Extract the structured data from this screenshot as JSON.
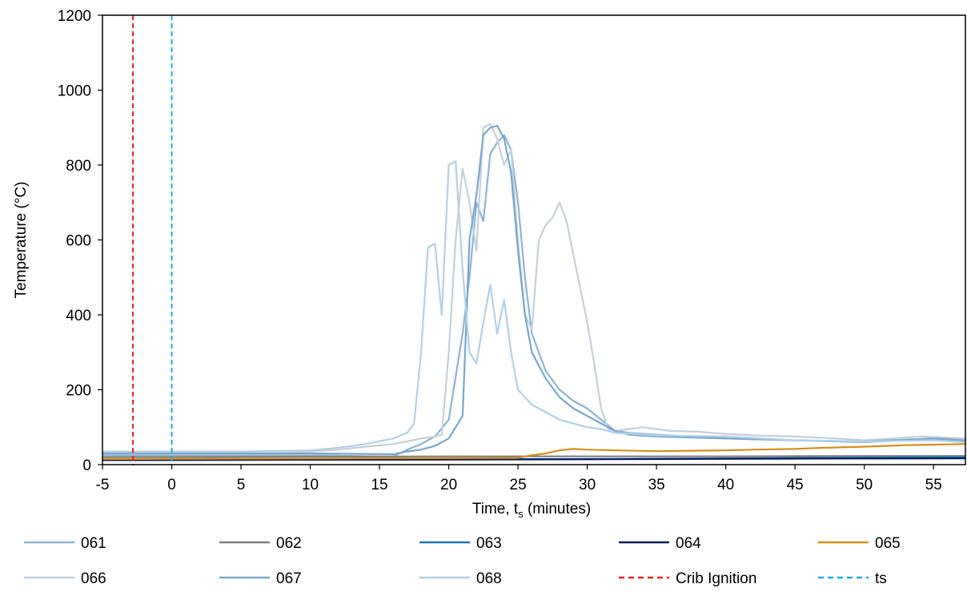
{
  "chart_data": {
    "type": "line",
    "xlabel_main": "Time, t",
    "xlabel_sub": "s",
    "xlabel_tail": " (minutes)",
    "ylabel": "Temperature (°C)",
    "xlim": [
      -5,
      57.3
    ],
    "ylim": [
      0,
      1200
    ],
    "xticks": [
      -5,
      0,
      5,
      10,
      15,
      20,
      25,
      30,
      35,
      40,
      45,
      50,
      55
    ],
    "yticks": [
      0,
      200,
      400,
      600,
      800,
      1000,
      1200
    ],
    "grid": false,
    "legend_position": "bottom",
    "vlines": [
      {
        "name": "Crib Ignition",
        "x": -2.8,
        "color": "#e8231f",
        "dash": true
      },
      {
        "name": "ts",
        "x": 0,
        "color": "#22a9e1",
        "dash": true
      }
    ],
    "series": [
      {
        "name": "061",
        "color": "#8fb4d3",
        "points": [
          [
            -5,
            25
          ],
          [
            10,
            25
          ],
          [
            15,
            22
          ],
          [
            16,
            22
          ],
          [
            17,
            40
          ],
          [
            18,
            55
          ],
          [
            19,
            75
          ],
          [
            20,
            120
          ],
          [
            21,
            350
          ],
          [
            21.5,
            500
          ],
          [
            22,
            700
          ],
          [
            22.5,
            650
          ],
          [
            23,
            830
          ],
          [
            23.5,
            860
          ],
          [
            24,
            880
          ],
          [
            24.5,
            840
          ],
          [
            25,
            700
          ],
          [
            25.5,
            500
          ],
          [
            26,
            350
          ],
          [
            27,
            250
          ],
          [
            28,
            200
          ],
          [
            29,
            170
          ],
          [
            30,
            150
          ],
          [
            31,
            120
          ],
          [
            32,
            90
          ],
          [
            33,
            85
          ],
          [
            35,
            80
          ],
          [
            40,
            70
          ],
          [
            45,
            65
          ],
          [
            50,
            60
          ],
          [
            55,
            70
          ],
          [
            57.3,
            62
          ]
        ]
      },
      {
        "name": "062",
        "color": "#808080",
        "points": [
          [
            -5,
            20
          ],
          [
            20,
            22
          ],
          [
            30,
            22
          ],
          [
            40,
            22
          ],
          [
            50,
            23
          ],
          [
            57.3,
            23
          ]
        ]
      },
      {
        "name": "063",
        "color": "#1f77b4",
        "points": [
          [
            -5,
            12
          ],
          [
            20,
            14
          ],
          [
            30,
            15
          ],
          [
            40,
            17
          ],
          [
            50,
            19
          ],
          [
            57.3,
            20
          ]
        ]
      },
      {
        "name": "064",
        "color": "#0a1a5c",
        "points": [
          [
            -5,
            12
          ],
          [
            25,
            14
          ],
          [
            35,
            15
          ],
          [
            45,
            16
          ],
          [
            57.3,
            17
          ]
        ]
      },
      {
        "name": "065",
        "color": "#d4901f",
        "points": [
          [
            -5,
            15
          ],
          [
            25,
            18
          ],
          [
            26,
            25
          ],
          [
            27,
            30
          ],
          [
            28,
            38
          ],
          [
            29,
            42
          ],
          [
            30,
            40
          ],
          [
            32,
            38
          ],
          [
            35,
            36
          ],
          [
            40,
            38
          ],
          [
            42,
            40
          ],
          [
            45,
            42
          ],
          [
            47,
            45
          ],
          [
            50,
            48
          ],
          [
            53,
            52
          ],
          [
            57.3,
            55
          ]
        ]
      },
      {
        "name": "066",
        "color": "#c4d0db",
        "points": [
          [
            -5,
            35
          ],
          [
            10,
            35
          ],
          [
            12,
            40
          ],
          [
            14,
            48
          ],
          [
            16,
            55
          ],
          [
            17,
            62
          ],
          [
            18,
            70
          ],
          [
            19,
            75
          ],
          [
            19.5,
            80
          ],
          [
            20,
            300
          ],
          [
            20.5,
            600
          ],
          [
            21,
            790
          ],
          [
            21.5,
            700
          ],
          [
            22,
            570
          ],
          [
            22.5,
            900
          ],
          [
            23,
            910
          ],
          [
            23.5,
            870
          ],
          [
            24,
            800
          ],
          [
            24.5,
            840
          ],
          [
            25,
            600
          ],
          [
            25.5,
            400
          ],
          [
            26,
            360
          ],
          [
            26.5,
            600
          ],
          [
            27,
            640
          ],
          [
            27.5,
            660
          ],
          [
            28,
            700
          ],
          [
            28.5,
            650
          ],
          [
            29,
            560
          ],
          [
            29.5,
            470
          ],
          [
            30,
            380
          ],
          [
            30.5,
            270
          ],
          [
            31,
            150
          ],
          [
            31.5,
            95
          ],
          [
            32,
            90
          ],
          [
            34,
            100
          ],
          [
            36,
            90
          ],
          [
            38,
            88
          ],
          [
            40,
            82
          ],
          [
            42,
            78
          ],
          [
            45,
            75
          ],
          [
            48,
            70
          ],
          [
            50,
            65
          ],
          [
            52,
            70
          ],
          [
            54,
            75
          ],
          [
            57.3,
            70
          ]
        ]
      },
      {
        "name": "067",
        "color": "#7ba7cc",
        "points": [
          [
            -5,
            30
          ],
          [
            10,
            30
          ],
          [
            15,
            28
          ],
          [
            16,
            28
          ],
          [
            17,
            35
          ],
          [
            18,
            40
          ],
          [
            19,
            50
          ],
          [
            20,
            70
          ],
          [
            20.5,
            100
          ],
          [
            21,
            130
          ],
          [
            21.5,
            600
          ],
          [
            22,
            720
          ],
          [
            22.5,
            880
          ],
          [
            23,
            900
          ],
          [
            23.5,
            905
          ],
          [
            24,
            870
          ],
          [
            24.5,
            780
          ],
          [
            25,
            570
          ],
          [
            25.5,
            400
          ],
          [
            26,
            300
          ],
          [
            27,
            230
          ],
          [
            28,
            180
          ],
          [
            29,
            150
          ],
          [
            30,
            130
          ],
          [
            31,
            110
          ],
          [
            32,
            90
          ],
          [
            33,
            80
          ],
          [
            35,
            75
          ],
          [
            40,
            70
          ],
          [
            45,
            65
          ],
          [
            50,
            62
          ],
          [
            55,
            70
          ],
          [
            57.3,
            65
          ]
        ]
      },
      {
        "name": "068",
        "color": "#b3d0e8",
        "points": [
          [
            -5,
            35
          ],
          [
            5,
            35
          ],
          [
            10,
            38
          ],
          [
            12,
            45
          ],
          [
            14,
            55
          ],
          [
            16,
            70
          ],
          [
            17,
            85
          ],
          [
            17.5,
            110
          ],
          [
            18,
            300
          ],
          [
            18.5,
            580
          ],
          [
            19,
            590
          ],
          [
            19.5,
            400
          ],
          [
            20,
            800
          ],
          [
            20.5,
            810
          ],
          [
            21,
            520
          ],
          [
            21.5,
            300
          ],
          [
            22,
            270
          ],
          [
            22.5,
            380
          ],
          [
            23,
            480
          ],
          [
            23.5,
            350
          ],
          [
            24,
            440
          ],
          [
            24.5,
            300
          ],
          [
            25,
            200
          ],
          [
            26,
            160
          ],
          [
            27,
            140
          ],
          [
            28,
            120
          ],
          [
            29,
            110
          ],
          [
            30,
            100
          ],
          [
            31,
            95
          ],
          [
            32,
            85
          ],
          [
            35,
            78
          ],
          [
            40,
            75
          ],
          [
            45,
            65
          ],
          [
            50,
            62
          ],
          [
            55,
            65
          ],
          [
            57.3,
            60
          ]
        ]
      }
    ]
  }
}
